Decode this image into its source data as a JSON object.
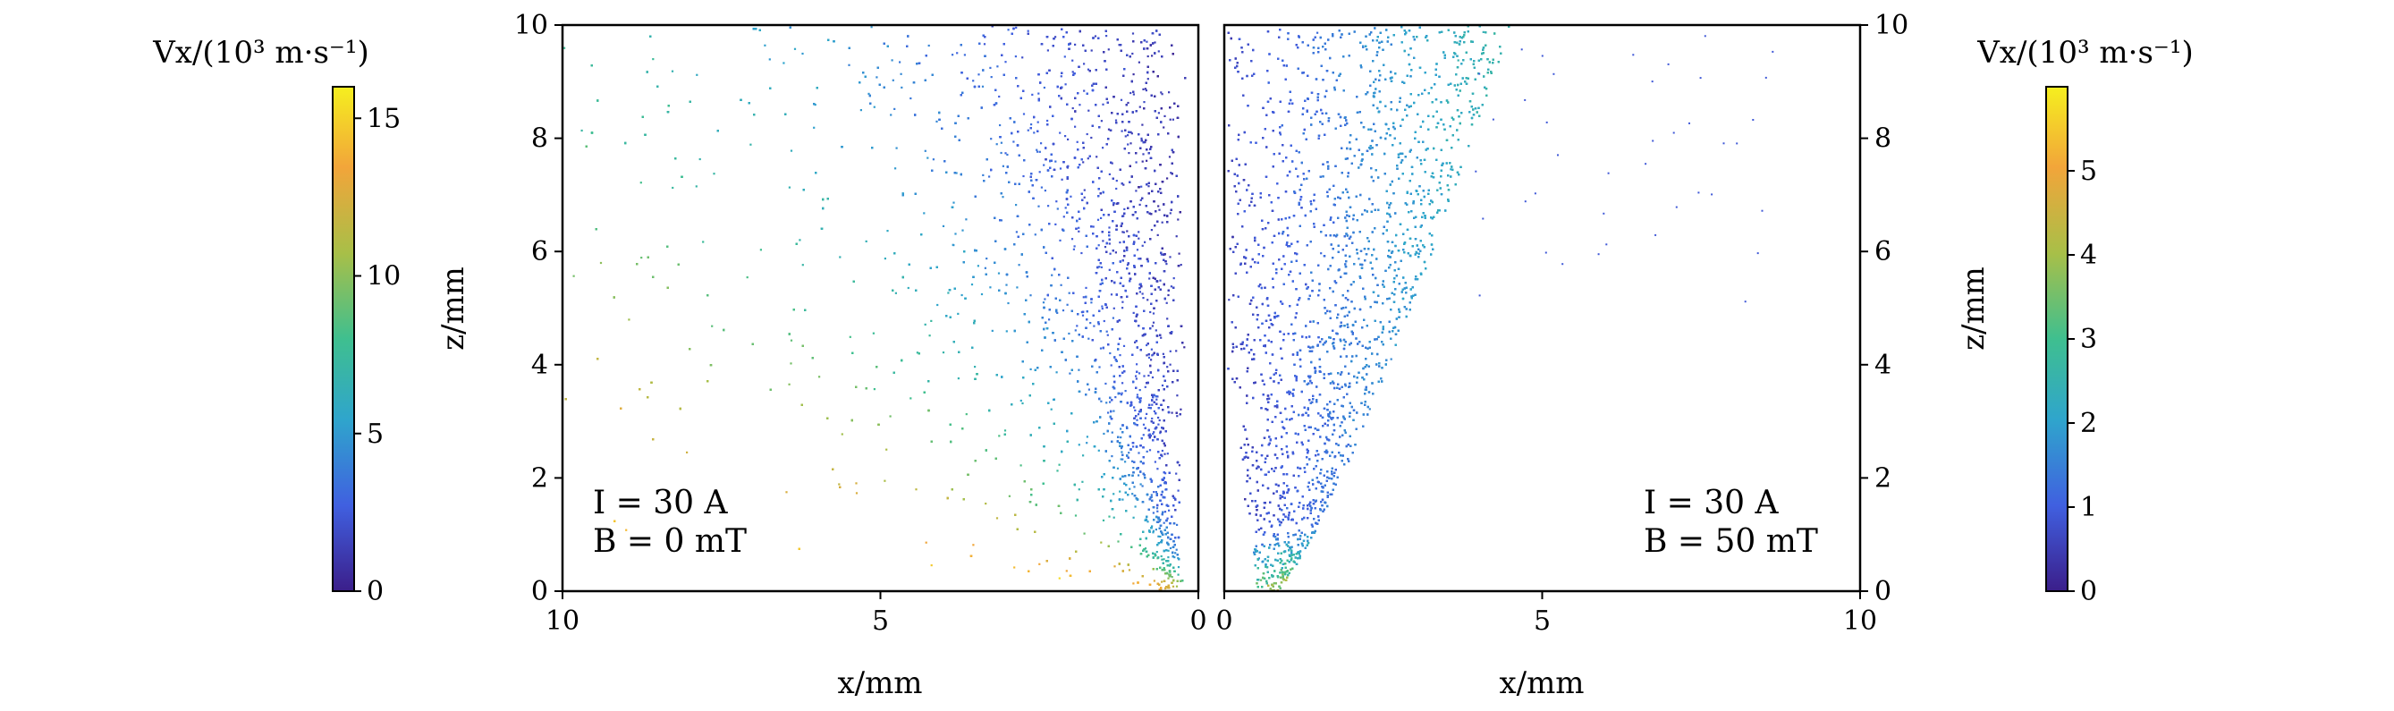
{
  "chart_data": [
    {
      "type": "scatter",
      "panel": "left",
      "xlabel": "x/mm",
      "ylabel": "z/mm",
      "xlim": [
        10,
        0
      ],
      "ylim": [
        0,
        10
      ],
      "xticks": [
        10,
        5,
        0
      ],
      "yticks": [
        0,
        2,
        4,
        6,
        8,
        10
      ],
      "annotations": [
        "I = 30 A",
        "B = 0 mT"
      ],
      "annotation_placement": "bottom-left",
      "colorbar": {
        "label": "Vx/(10³ m·s⁻¹)",
        "range": [
          0,
          16
        ],
        "ticks": [
          0,
          5,
          10,
          15
        ],
        "placement": "left",
        "colormap": [
          "#3b1e8a",
          "#4060e0",
          "#2fa5cc",
          "#3fbf8f",
          "#a8bf48",
          "#f2a53a",
          "#f5ef1f"
        ]
      },
      "distribution": {
        "source_x": 0.8,
        "source_z": 0,
        "max_spread_x": 10,
        "velocity_range": [
          0,
          16
        ]
      }
    },
    {
      "type": "scatter",
      "panel": "right",
      "xlabel": "x/mm",
      "ylabel": "z/mm",
      "xlim": [
        0,
        10
      ],
      "ylim": [
        0,
        10
      ],
      "xticks": [
        0,
        5,
        10
      ],
      "yticks": [
        0,
        2,
        4,
        6,
        8,
        10
      ],
      "annotations": [
        "I = 30 A",
        "B = 50 mT"
      ],
      "annotation_placement": "bottom-right",
      "colorbar": {
        "label": "Vx/(10³ m·s⁻¹)",
        "range": [
          0,
          6
        ],
        "ticks": [
          0,
          1,
          2,
          3,
          4,
          5
        ],
        "placement": "right",
        "colormap": [
          "#3b1e8a",
          "#4060e0",
          "#2fa5cc",
          "#3fbf8f",
          "#a8bf48",
          "#f2a53a",
          "#f5ef1f"
        ]
      },
      "distribution": {
        "source_x": 0.8,
        "source_z": 0,
        "envelope_x_at_top": 3.9,
        "velocity_range": [
          0,
          6
        ]
      }
    }
  ]
}
